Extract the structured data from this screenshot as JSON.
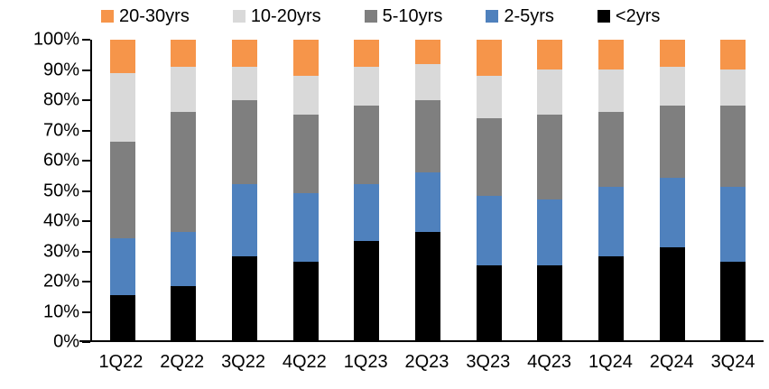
{
  "figure": {
    "background": "#ffffff",
    "axis_color": "#000000"
  },
  "chart_data": {
    "type": "bar",
    "variant": "stacked-100",
    "categories": [
      "1Q22",
      "2Q22",
      "3Q22",
      "4Q22",
      "1Q23",
      "2Q23",
      "3Q23",
      "4Q23",
      "1Q24",
      "2Q24",
      "3Q24"
    ],
    "series": [
      {
        "name": "<2yrs",
        "color": "#000000",
        "values": [
          15,
          18,
          28,
          26,
          33,
          36,
          25,
          25,
          28,
          31,
          26
        ]
      },
      {
        "name": "2-5yrs",
        "color": "#4F81BD",
        "values": [
          19,
          18,
          24,
          23,
          19,
          20,
          23,
          22,
          23,
          23,
          25
        ]
      },
      {
        "name": "5-10yrs",
        "color": "#7F7F7F",
        "values": [
          32,
          40,
          28,
          26,
          26,
          24,
          26,
          28,
          25,
          24,
          27
        ]
      },
      {
        "name": "10-20yrs",
        "color": "#D9D9D9",
        "values": [
          23,
          15,
          11,
          13,
          13,
          12,
          14,
          15,
          14,
          13,
          12
        ]
      },
      {
        "name": "20-30yrs",
        "color": "#F6954A",
        "values": [
          11,
          9,
          9,
          12,
          9,
          8,
          12,
          10,
          10,
          9,
          10
        ]
      }
    ],
    "legend": {
      "position": "top",
      "order": [
        "20-30yrs",
        "10-20yrs",
        "5-10yrs",
        "2-5yrs",
        "<2yrs"
      ]
    },
    "y_axis": {
      "min": 0,
      "max": 100,
      "tick_labels": [
        "0%",
        "10%",
        "20%",
        "30%",
        "40%",
        "50%",
        "60%",
        "70%",
        "80%",
        "90%",
        "100%"
      ]
    },
    "x_axis": {
      "tick_labels": [
        "1Q22",
        "2Q22",
        "3Q22",
        "4Q22",
        "1Q23",
        "2Q23",
        "3Q23",
        "4Q23",
        "1Q24",
        "2Q24",
        "3Q24"
      ]
    },
    "grid": false
  }
}
